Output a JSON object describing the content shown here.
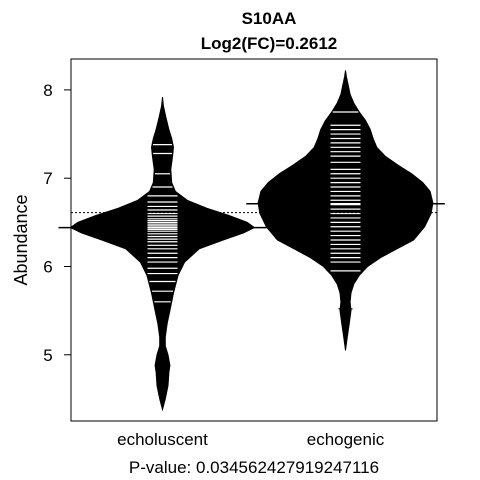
{
  "chart_data": {
    "type": "beanplot",
    "title": "S10AA",
    "subtitle": "Log2(FC)=0.2612",
    "ylabel": "Abundance",
    "xlabel": "P-value: 0.034562427919247116",
    "categories": [
      "echoluscent",
      "echogenic"
    ],
    "yticks": [
      5,
      6,
      7,
      8
    ],
    "ylim": [
      4.25,
      8.35
    ],
    "overall_mean": 6.61,
    "grid": false,
    "legend": "none",
    "colors": {
      "bean": "#000000",
      "beanline": "#ffffff",
      "frame": "#000000"
    },
    "series": [
      {
        "category": "echoluscent",
        "mean": 6.44,
        "density": [
          [
            4.38,
            0.0
          ],
          [
            4.5,
            0.03
          ],
          [
            4.65,
            0.06
          ],
          [
            4.8,
            0.07
          ],
          [
            4.88,
            0.08
          ],
          [
            5.0,
            0.06
          ],
          [
            5.1,
            0.03
          ],
          [
            5.2,
            0.03
          ],
          [
            5.35,
            0.05
          ],
          [
            5.5,
            0.08
          ],
          [
            5.7,
            0.12
          ],
          [
            5.9,
            0.17
          ],
          [
            6.05,
            0.24
          ],
          [
            6.2,
            0.4
          ],
          [
            6.3,
            0.66
          ],
          [
            6.38,
            0.88
          ],
          [
            6.44,
            1.0
          ],
          [
            6.5,
            0.92
          ],
          [
            6.58,
            0.72
          ],
          [
            6.66,
            0.48
          ],
          [
            6.75,
            0.27
          ],
          [
            6.85,
            0.14
          ],
          [
            6.95,
            0.1
          ],
          [
            7.1,
            0.09
          ],
          [
            7.25,
            0.11
          ],
          [
            7.35,
            0.12
          ],
          [
            7.45,
            0.1
          ],
          [
            7.55,
            0.07
          ],
          [
            7.7,
            0.035
          ],
          [
            7.82,
            0.01
          ],
          [
            7.92,
            0.0
          ]
        ],
        "observations": [
          4.84,
          4.89,
          5.48,
          5.6,
          5.72,
          5.83,
          5.92,
          5.98,
          6.05,
          6.1,
          6.15,
          6.2,
          6.24,
          6.28,
          6.31,
          6.34,
          6.37,
          6.4,
          6.42,
          6.44,
          6.46,
          6.48,
          6.5,
          6.52,
          6.54,
          6.57,
          6.6,
          6.64,
          6.68,
          6.73,
          6.8,
          6.9,
          7.05,
          7.28,
          7.38,
          7.55
        ]
      },
      {
        "category": "echogenic",
        "mean": 6.71,
        "density": [
          [
            5.05,
            0.0
          ],
          [
            5.2,
            0.02
          ],
          [
            5.35,
            0.04
          ],
          [
            5.5,
            0.06
          ],
          [
            5.6,
            0.05
          ],
          [
            5.7,
            0.06
          ],
          [
            5.8,
            0.09
          ],
          [
            5.9,
            0.15
          ],
          [
            6.0,
            0.24
          ],
          [
            6.1,
            0.38
          ],
          [
            6.2,
            0.56
          ],
          [
            6.3,
            0.74
          ],
          [
            6.45,
            0.86
          ],
          [
            6.6,
            0.93
          ],
          [
            6.72,
            0.95
          ],
          [
            6.85,
            0.92
          ],
          [
            6.95,
            0.84
          ],
          [
            7.05,
            0.72
          ],
          [
            7.15,
            0.57
          ],
          [
            7.25,
            0.43
          ],
          [
            7.35,
            0.34
          ],
          [
            7.45,
            0.3
          ],
          [
            7.55,
            0.27
          ],
          [
            7.65,
            0.22
          ],
          [
            7.75,
            0.15
          ],
          [
            7.85,
            0.09
          ],
          [
            7.95,
            0.05
          ],
          [
            8.05,
            0.03
          ],
          [
            8.15,
            0.01
          ],
          [
            8.22,
            0.0
          ]
        ],
        "observations": [
          5.52,
          5.95,
          6.05,
          6.1,
          6.15,
          6.2,
          6.25,
          6.3,
          6.35,
          6.4,
          6.45,
          6.5,
          6.55,
          6.6,
          6.65,
          6.7,
          6.75,
          6.8,
          6.85,
          6.9,
          6.95,
          7.0,
          7.05,
          7.1,
          7.18,
          7.25,
          7.3,
          7.35,
          7.4,
          7.45,
          7.5,
          7.55,
          7.6,
          7.75
        ]
      }
    ]
  }
}
